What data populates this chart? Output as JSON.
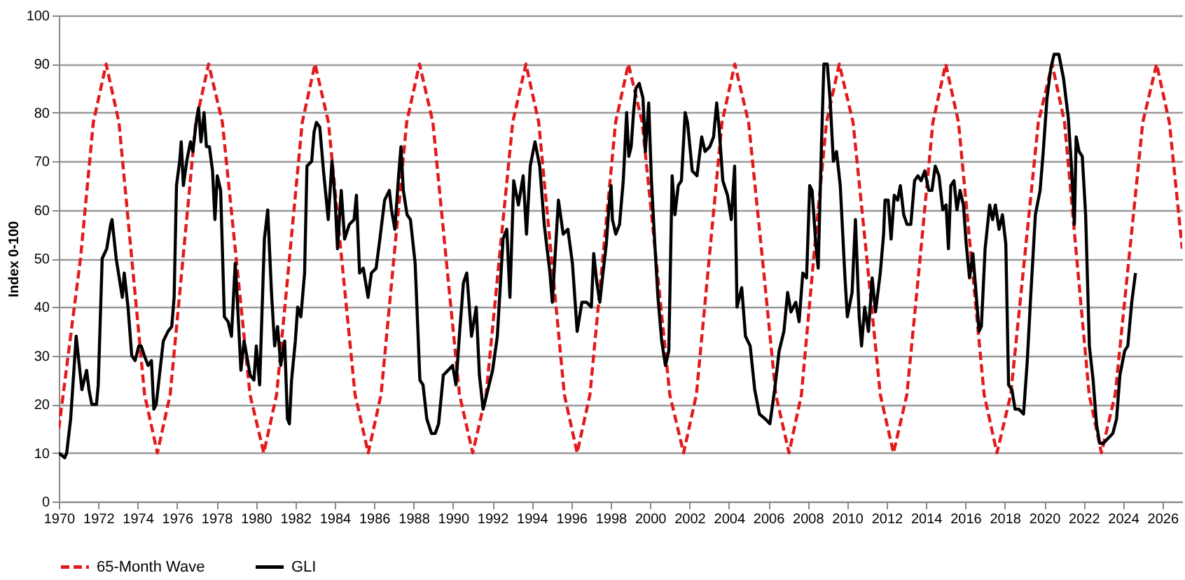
{
  "chart_data": {
    "type": "line",
    "ylabel": "Index 0-100",
    "xlim": [
      1970,
      2027
    ],
    "xticks": [
      1970,
      1972,
      1974,
      1976,
      1978,
      1980,
      1982,
      1984,
      1986,
      1988,
      1990,
      1992,
      1994,
      1996,
      1998,
      2000,
      2002,
      2004,
      2006,
      2008,
      2010,
      2012,
      2014,
      2016,
      2018,
      2020,
      2022,
      2024,
      2026
    ],
    "ylim": [
      0,
      100
    ],
    "yticks": [
      0,
      10,
      20,
      30,
      40,
      50,
      60,
      70,
      80,
      90,
      100
    ],
    "grid": "y",
    "legend": "bottom",
    "series": [
      {
        "name": "65-Month Wave",
        "color": "#e31a1c",
        "line_style": "dashed",
        "x": [
          1970,
          1971.1,
          1971.75,
          1972.4,
          1973.05,
          1973.7,
          1974.35,
          1975.0,
          1975.65,
          1976.3,
          1976.95,
          1977.6,
          1978.3,
          1979.0,
          1979.7,
          1980.4,
          1981.05,
          1981.7,
          1982.35,
          1983.0,
          1983.68,
          1984.35,
          1985.03,
          1985.7,
          1986.35,
          1987.0,
          1987.65,
          1988.3,
          1988.98,
          1989.65,
          1990.33,
          1991.0,
          1991.68,
          1992.35,
          1993.03,
          1993.7,
          1994.35,
          1995.0,
          1995.65,
          1996.3,
          1996.95,
          1997.6,
          1998.25,
          1998.9,
          1999.6,
          2000.3,
          2001.0,
          2001.7,
          2002.35,
          2003.0,
          2003.65,
          2004.3,
          2005.0,
          2005.7,
          2006.38,
          2007.05,
          2007.68,
          2008.3,
          2008.95,
          2009.6,
          2010.3,
          2011.0,
          2011.68,
          2012.35,
          2013.03,
          2013.7,
          2014.35,
          2015.0,
          2015.65,
          2016.3,
          2016.95,
          2017.6,
          2018.3,
          2019.0,
          2019.7,
          2020.4,
          2021.03,
          2021.65,
          2022.28,
          2022.9,
          2023.6,
          2024.3,
          2025.0,
          2025.7,
          2026.35,
          2027.0
        ],
        "values": [
          15,
          50,
          78,
          90,
          78,
          50,
          22,
          10,
          22,
          50,
          78,
          90,
          78,
          50,
          22,
          10,
          22,
          50,
          78,
          90,
          78,
          50,
          22,
          10,
          22,
          50,
          78,
          90,
          78,
          50,
          22,
          10,
          22,
          50,
          78,
          90,
          78,
          50,
          22,
          10,
          22,
          50,
          78,
          90,
          78,
          50,
          22,
          10,
          22,
          50,
          78,
          90,
          78,
          50,
          22,
          10,
          22,
          50,
          78,
          90,
          78,
          50,
          22,
          10,
          22,
          50,
          78,
          90,
          78,
          50,
          22,
          10,
          22,
          50,
          78,
          90,
          78,
          50,
          22,
          10,
          22,
          50,
          78,
          90,
          78,
          52
        ]
      },
      {
        "name": "GLI",
        "color": "#000000",
        "line_style": "solid",
        "x": [
          1970.0,
          1970.3,
          1970.4,
          1970.6,
          1970.88,
          1971.17,
          1971.41,
          1971.53,
          1971.67,
          1971.91,
          1972.0,
          1972.2,
          1972.43,
          1972.63,
          1972.7,
          1972.91,
          1973.22,
          1973.32,
          1973.51,
          1973.7,
          1973.87,
          1974.06,
          1974.18,
          1974.34,
          1974.53,
          1974.7,
          1974.82,
          1974.94,
          1975.3,
          1975.54,
          1975.73,
          1975.85,
          1975.97,
          1976.13,
          1976.21,
          1976.32,
          1976.49,
          1976.68,
          1976.8,
          1976.97,
          1977.09,
          1977.21,
          1977.37,
          1977.49,
          1977.64,
          1977.8,
          1977.92,
          1978.04,
          1978.21,
          1978.4,
          1978.59,
          1978.76,
          1978.95,
          1979.05,
          1979.24,
          1979.4,
          1979.71,
          1979.9,
          1980.02,
          1980.19,
          1980.43,
          1980.6,
          1980.79,
          1980.95,
          1981.1,
          1981.26,
          1981.46,
          1981.6,
          1981.7,
          1981.81,
          1982.0,
          1982.12,
          1982.28,
          1982.47,
          1982.59,
          1982.83,
          1982.95,
          1983.07,
          1983.24,
          1983.43,
          1983.67,
          1983.86,
          1984.02,
          1984.14,
          1984.33,
          1984.5,
          1984.74,
          1984.98,
          1985.1,
          1985.26,
          1985.45,
          1985.69,
          1985.86,
          1986.1,
          1986.29,
          1986.53,
          1986.77,
          1986.88,
          1987.05,
          1987.24,
          1987.36,
          1987.48,
          1987.67,
          1987.84,
          1988.08,
          1988.32,
          1988.48,
          1988.67,
          1988.91,
          1989.1,
          1989.27,
          1989.51,
          1989.75,
          1989.98,
          1990.15,
          1990.34,
          1990.53,
          1990.7,
          1990.94,
          1991.18,
          1991.34,
          1991.53,
          1991.77,
          1992.01,
          1992.25,
          1992.54,
          1992.73,
          1992.89,
          1993.08,
          1993.32,
          1993.56,
          1993.73,
          1993.92,
          1994.16,
          1994.4,
          1994.63,
          1994.92,
          1995.04,
          1995.35,
          1995.59,
          1995.83,
          1996.06,
          1996.3,
          1996.54,
          1996.78,
          1997.02,
          1997.14,
          1997.3,
          1997.45,
          1997.61,
          1997.78,
          1997.92,
          1998.02,
          1998.09,
          1998.26,
          1998.45,
          1998.64,
          1998.81,
          1998.92,
          1999.04,
          1999.16,
          1999.28,
          1999.45,
          1999.64,
          1999.76,
          1999.93,
          2000.07,
          2000.24,
          2000.4,
          2000.59,
          2000.78,
          2000.95,
          2001.12,
          2001.26,
          2001.43,
          2001.59,
          2001.78,
          2001.9,
          2002.14,
          2002.38,
          2002.62,
          2002.79,
          2003.03,
          2003.22,
          2003.38,
          2003.5,
          2003.69,
          2003.93,
          2004.12,
          2004.29,
          2004.41,
          2004.65,
          2004.84,
          2005.08,
          2005.31,
          2005.55,
          2005.84,
          2006.08,
          2006.32,
          2006.55,
          2006.79,
          2006.98,
          2007.15,
          2007.39,
          2007.56,
          2007.75,
          2007.94,
          2008.1,
          2008.22,
          2008.41,
          2008.53,
          2008.7,
          2008.82,
          2008.99,
          2009.13,
          2009.3,
          2009.46,
          2009.65,
          2009.89,
          2010.01,
          2010.25,
          2010.42,
          2010.61,
          2010.73,
          2010.89,
          2011.08,
          2011.27,
          2011.44,
          2011.68,
          2011.85,
          2011.92,
          2012.08,
          2012.23,
          2012.39,
          2012.56,
          2012.7,
          2012.87,
          2013.04,
          2013.23,
          2013.42,
          2013.59,
          2013.75,
          2013.94,
          2014.14,
          2014.3,
          2014.47,
          2014.66,
          2014.85,
          2015.02,
          2015.14,
          2015.26,
          2015.42,
          2015.57,
          2015.73,
          2015.9,
          2016.04,
          2016.21,
          2016.38,
          2016.52,
          2016.69,
          2016.81,
          2017.0,
          2017.23,
          2017.38,
          2017.52,
          2017.71,
          2017.88,
          2018.05,
          2018.19,
          2018.36,
          2018.52,
          2018.71,
          2018.95,
          2019.14,
          2019.31,
          2019.55,
          2019.79,
          2019.95,
          2020.14,
          2020.33,
          2020.5,
          2020.74,
          2020.98,
          2021.22,
          2021.38,
          2021.53,
          2021.62,
          2021.77,
          2021.93,
          2022.1,
          2022.29,
          2022.48,
          2022.65,
          2022.81,
          2023.0,
          2023.24,
          2023.48,
          2023.67,
          2023.84,
          2024.08,
          2024.24,
          2024.44,
          2024.63
        ],
        "values": [
          10,
          9,
          10,
          17,
          34,
          23,
          27,
          23,
          20,
          20,
          24,
          50,
          52,
          57,
          58,
          50,
          42,
          47,
          40,
          30,
          29,
          32,
          32,
          30,
          28,
          29,
          19,
          20,
          33,
          35,
          36,
          42,
          65,
          70,
          74,
          65,
          70,
          74,
          72,
          78,
          81,
          74,
          80,
          73,
          73,
          68,
          58,
          67,
          64,
          38,
          37,
          34,
          49,
          42,
          27,
          33,
          26,
          25,
          32,
          24,
          54,
          60,
          43,
          32,
          36,
          28,
          33,
          17,
          16,
          25,
          33,
          40,
          38,
          47,
          69,
          70,
          76,
          78,
          77,
          68,
          58,
          70,
          62,
          52,
          64,
          54,
          57,
          58,
          63,
          47,
          48,
          42,
          47,
          48,
          54,
          62,
          64,
          60,
          56,
          67,
          73,
          64,
          59,
          58,
          49,
          25,
          24,
          17,
          14,
          14,
          16,
          26,
          27,
          28,
          24,
          35,
          45,
          47,
          34,
          40,
          26,
          19,
          23,
          27,
          34,
          54,
          56,
          42,
          66,
          61,
          67,
          55,
          69,
          74,
          69,
          57,
          47,
          41,
          62,
          55,
          56,
          49,
          35,
          41,
          41,
          40,
          51,
          45,
          41,
          47,
          53,
          61,
          65,
          58,
          55,
          57,
          66,
          80,
          71,
          73,
          80,
          85,
          86,
          83,
          72,
          82,
          66,
          53,
          42,
          33,
          28,
          31,
          67,
          59,
          65,
          66,
          80,
          78,
          68,
          67,
          75,
          72,
          73,
          75,
          82,
          77,
          66,
          63,
          58,
          69,
          40,
          44,
          34,
          32,
          23,
          18,
          17,
          16,
          23,
          31,
          35,
          43,
          39,
          41,
          37,
          47,
          46,
          65,
          64,
          53,
          48,
          74,
          90,
          90,
          83,
          70,
          72,
          65,
          46,
          38,
          43,
          58,
          38,
          32,
          40,
          35,
          46,
          39,
          47,
          55,
          62,
          62,
          54,
          63,
          62,
          65,
          59,
          57,
          57,
          66,
          67,
          66,
          68,
          64,
          64,
          69,
          67,
          60,
          61,
          52,
          65,
          66,
          60,
          64,
          61,
          53,
          46,
          51,
          44,
          35,
          36,
          52,
          61,
          58,
          61,
          56,
          59,
          53,
          24,
          23,
          19,
          19,
          18,
          29,
          42,
          59,
          64,
          72,
          83,
          89,
          92,
          92,
          87,
          79,
          69,
          57,
          75,
          72,
          71,
          59,
          32,
          25,
          16,
          12,
          12,
          13,
          14,
          17,
          26,
          31,
          32,
          41,
          47
        ]
      }
    ]
  }
}
